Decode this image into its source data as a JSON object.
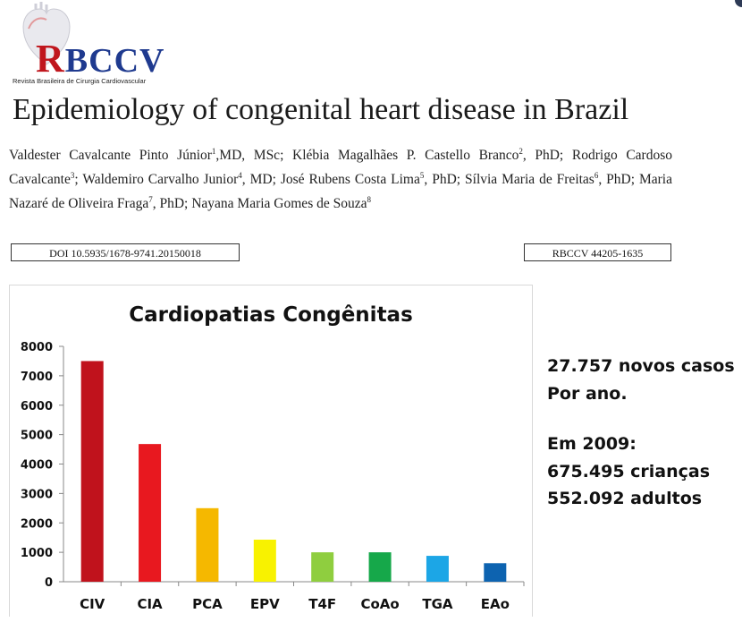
{
  "logo": {
    "text_r": "R",
    "text_rest": "BCCV",
    "subtitle": "Revista Brasileira de Cirurgia Cardiovascular",
    "colors": {
      "red": "#c0161d",
      "blue": "#1f3a8f"
    }
  },
  "paper": {
    "title": "Epidemiology of congenital heart disease in Brazil",
    "authors": [
      {
        "name": "Valdester Cavalcante Pinto Júnior",
        "sup": "1",
        "after": ",MD, MSc; "
      },
      {
        "name": "Klébia Magalhães P. Castello Branco",
        "sup": "2",
        "after": ", PhD; "
      },
      {
        "name": "Rodrigo Cardoso Cavalcante",
        "sup": "3",
        "after": "; "
      },
      {
        "name": "Waldemiro Carvalho Junior",
        "sup": "4",
        "after": ", MD; "
      },
      {
        "name": "José Rubens Costa Lima",
        "sup": "5",
        "after": ", PhD; "
      },
      {
        "name": "Sílvia Maria de Freitas",
        "sup": "6",
        "after": ", PhD; "
      },
      {
        "name": "Maria Nazaré de Oliveira Fraga",
        "sup": "7",
        "after": ", PhD; "
      },
      {
        "name": "Nayana Maria Gomes de Souza",
        "sup": "8",
        "after": ""
      }
    ],
    "doi": "DOI 10.5935/1678-9741.20150018",
    "code": "RBCCV 44205-1635"
  },
  "chart_data": {
    "type": "bar",
    "title": "Cardiopatias Congênitas",
    "xlabel": "",
    "ylabel": "",
    "categories": [
      "CIV",
      "CIA",
      "PCA",
      "EPV",
      "T4F",
      "CoAo",
      "TGA",
      "EAo"
    ],
    "values": [
      7500,
      4680,
      2500,
      1430,
      1000,
      1000,
      880,
      630
    ],
    "colors": [
      "#c0121c",
      "#e8181f",
      "#f5b800",
      "#f8f200",
      "#8fce3f",
      "#16a84a",
      "#1ca6e6",
      "#0d63b0"
    ],
    "ylim": [
      0,
      8000
    ],
    "yticks": [
      0,
      1000,
      2000,
      3000,
      4000,
      5000,
      6000,
      7000,
      8000
    ],
    "grid": false,
    "legend": "none"
  },
  "stats": {
    "line1": "27.757 novos casos",
    "line2": "Por ano.",
    "line3": "Em 2009:",
    "line4": "675.495 crianças",
    "line5": "552.092 adultos"
  }
}
